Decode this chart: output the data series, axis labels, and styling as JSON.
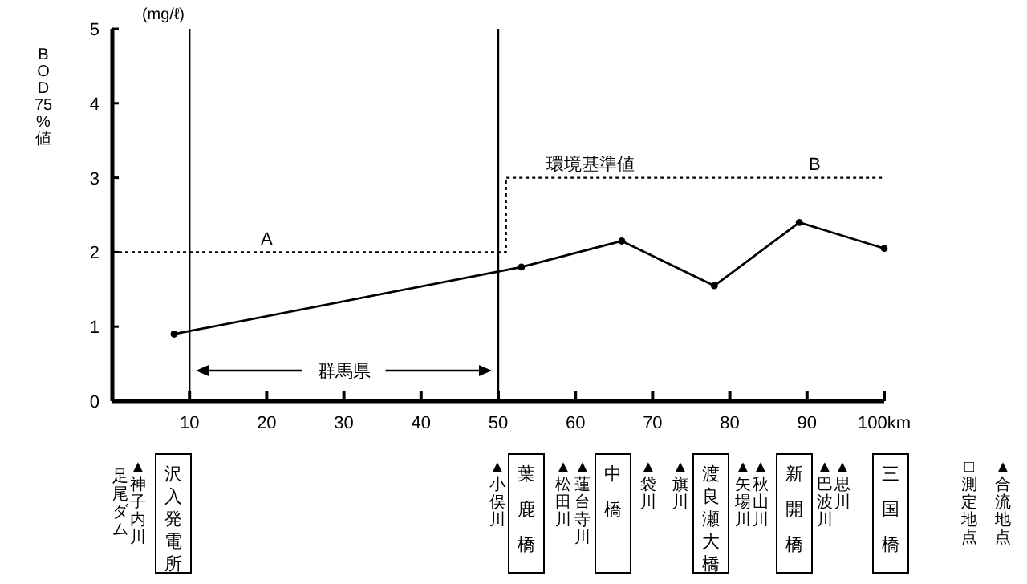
{
  "chart_data": {
    "type": "line",
    "ylabel": "BOD75%値",
    "xlim": [
      0,
      100
    ],
    "ylim": [
      0,
      5
    ],
    "xticks": [
      10,
      20,
      30,
      40,
      50,
      60,
      70,
      80,
      90,
      {
        "value": 100,
        "label": "100km"
      }
    ],
    "yticks": [
      0,
      1,
      2,
      3,
      4,
      5
    ],
    "grid": false,
    "series": [
      {
        "color": "#000000",
        "marker": "circle",
        "line_style": "solid",
        "x": [
          8,
          53,
          66,
          78,
          89,
          100
        ],
        "values": [
          0.9,
          1.8,
          2.15,
          1.55,
          2.4,
          2.05
        ]
      },
      {
        "color": "#000000",
        "marker": "none",
        "line_style": "dotted",
        "x": [
          0,
          51,
          51,
          100
        ],
        "values": [
          2,
          2,
          3,
          3
        ]
      }
    ],
    "ref_lines": [
      {
        "axis": "x",
        "value": 10
      },
      {
        "axis": "x",
        "value": 50
      }
    ],
    "annotations": [
      "(mg/ℓ)",
      "▲合流地点",
      "□測定地点",
      "群馬県",
      "足尾ダム",
      "▲神子内川",
      "沢入発電所",
      "▲小俣川",
      "葉鹿橋",
      "▲松田川",
      "▲蓮台寺川",
      "中橋",
      "▲袋川",
      "▲旗川",
      "渡良瀬大橋",
      "▲矢場川",
      "▲秋山川",
      "新開橋",
      "▲巴波川",
      "▲思川",
      "三国橋",
      {
        "text": "A",
        "x": 20,
        "y": 2.1
      },
      {
        "text": "環境基準値",
        "x": 62,
        "y": 3.1
      },
      {
        "text": "B",
        "x": 91,
        "y": 3.1
      }
    ]
  }
}
